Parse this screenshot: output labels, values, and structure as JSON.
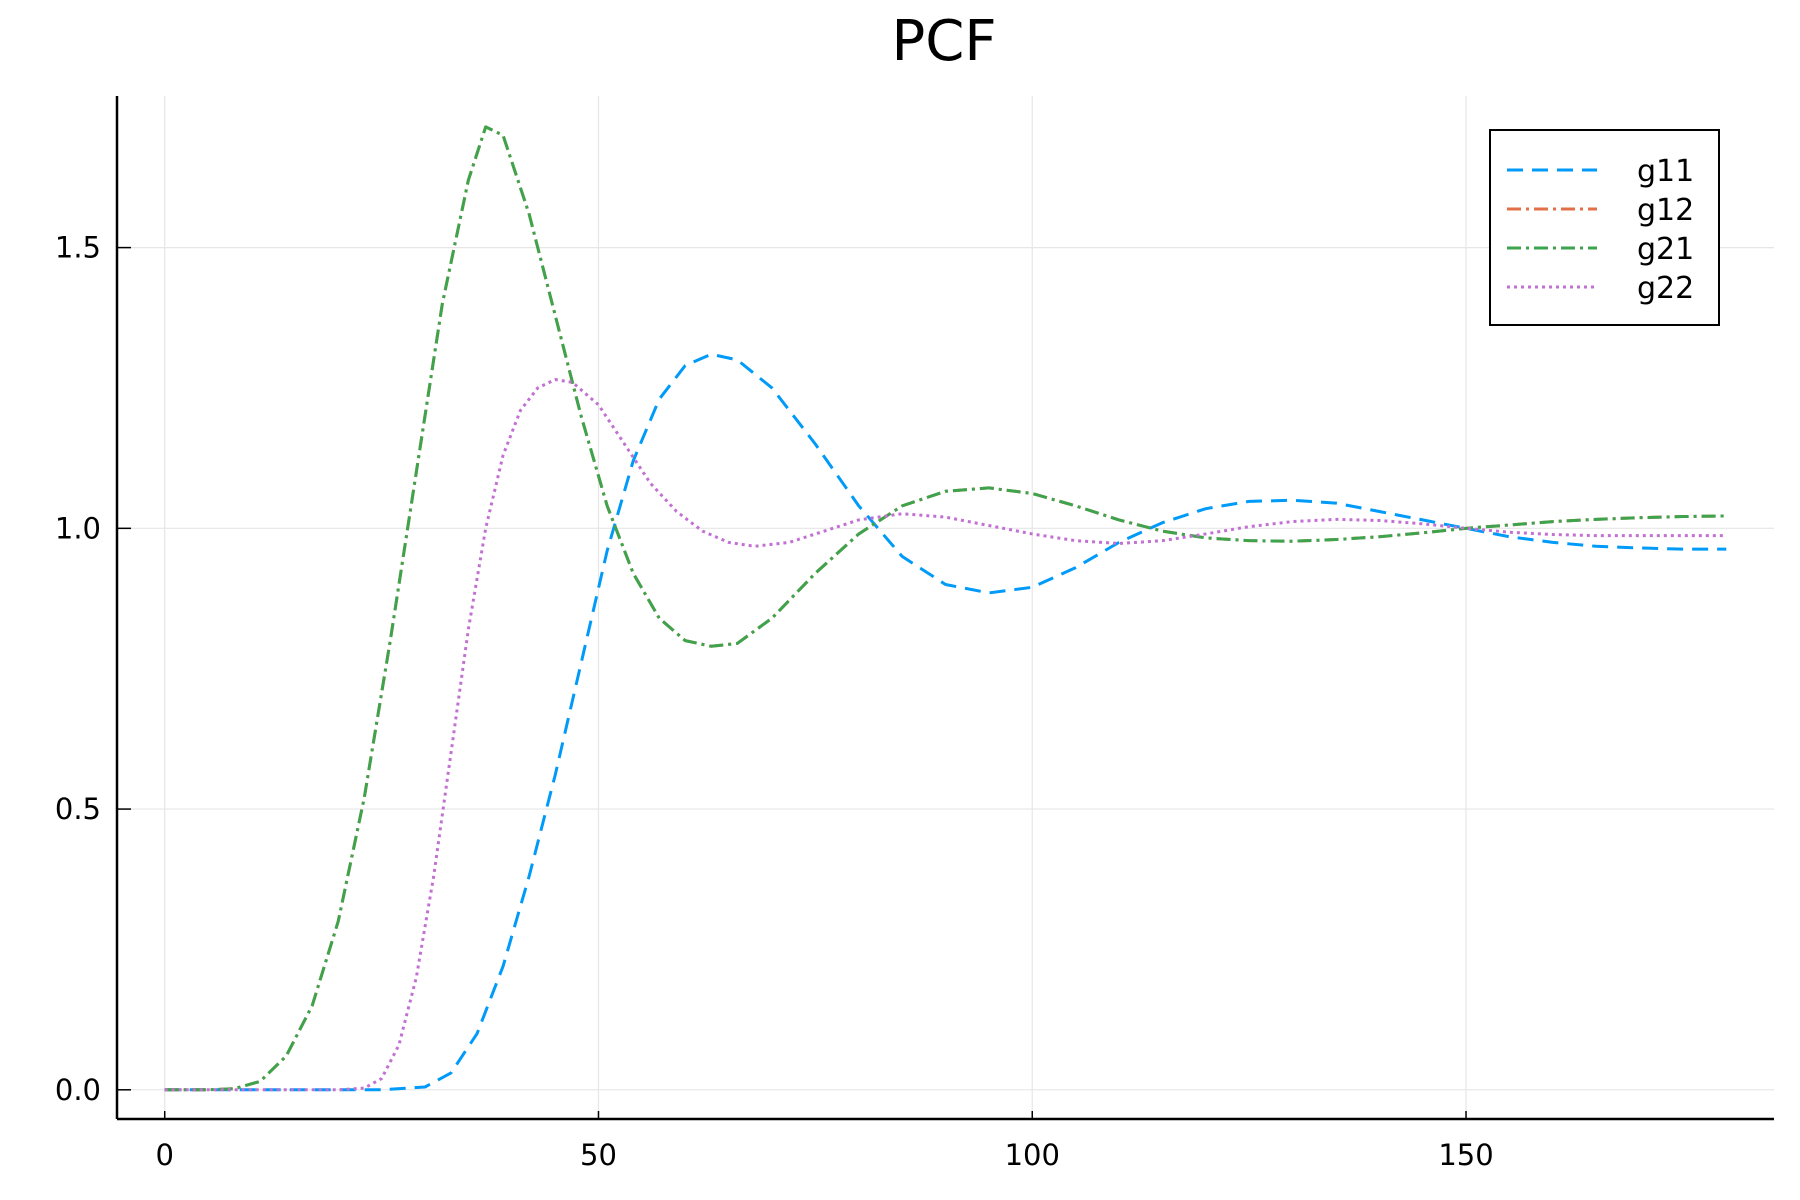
{
  "chart_data": {
    "type": "line",
    "title": "PCF",
    "xlabel": "",
    "ylabel": "",
    "xlim": [
      -5.5,
      185.5
    ],
    "ylim": [
      -0.052,
      1.77
    ],
    "xticks": [
      0,
      50,
      100,
      150
    ],
    "yticks": [
      0.0,
      0.5,
      1.0,
      1.5
    ],
    "xtick_labels": [
      "0",
      "50",
      "100",
      "150"
    ],
    "ytick_labels": [
      "0.0",
      "0.5",
      "1.0",
      "1.5"
    ],
    "grid": true,
    "legend_position": "top-right",
    "series": [
      {
        "name": "g11",
        "color": "#009af9",
        "dash": "dash",
        "points": [
          [
            0,
            0
          ],
          [
            25,
            0
          ],
          [
            30,
            0.005
          ],
          [
            33,
            0.03
          ],
          [
            36,
            0.1
          ],
          [
            39,
            0.22
          ],
          [
            42,
            0.38
          ],
          [
            45,
            0.56
          ],
          [
            48,
            0.76
          ],
          [
            51,
            0.96
          ],
          [
            54,
            1.12
          ],
          [
            57,
            1.23
          ],
          [
            60,
            1.29
          ],
          [
            63,
            1.31
          ],
          [
            66,
            1.3
          ],
          [
            70,
            1.25
          ],
          [
            75,
            1.15
          ],
          [
            80,
            1.04
          ],
          [
            85,
            0.95
          ],
          [
            90,
            0.9
          ],
          [
            95,
            0.885
          ],
          [
            100,
            0.895
          ],
          [
            105,
            0.93
          ],
          [
            110,
            0.975
          ],
          [
            115,
            1.01
          ],
          [
            120,
            1.035
          ],
          [
            125,
            1.048
          ],
          [
            130,
            1.05
          ],
          [
            135,
            1.045
          ],
          [
            140,
            1.03
          ],
          [
            145,
            1.015
          ],
          [
            150,
            1.0
          ],
          [
            155,
            0.985
          ],
          [
            160,
            0.975
          ],
          [
            165,
            0.968
          ],
          [
            170,
            0.965
          ],
          [
            175,
            0.963
          ],
          [
            180,
            0.963
          ]
        ]
      },
      {
        "name": "g12",
        "color": "#e26f46",
        "dash": "dashdot",
        "points": [
          [
            0,
            0
          ],
          [
            5,
            0
          ],
          [
            8,
            0.002
          ],
          [
            11,
            0.015
          ],
          [
            14,
            0.06
          ],
          [
            17,
            0.15
          ],
          [
            20,
            0.3
          ],
          [
            23,
            0.52
          ],
          [
            26,
            0.8
          ],
          [
            29,
            1.1
          ],
          [
            32,
            1.4
          ],
          [
            35,
            1.62
          ],
          [
            37,
            1.715
          ],
          [
            39,
            1.7
          ],
          [
            42,
            1.56
          ],
          [
            45,
            1.38
          ],
          [
            48,
            1.2
          ],
          [
            51,
            1.04
          ],
          [
            54,
            0.92
          ],
          [
            57,
            0.84
          ],
          [
            60,
            0.8
          ],
          [
            63,
            0.79
          ],
          [
            66,
            0.795
          ],
          [
            70,
            0.84
          ],
          [
            75,
            0.92
          ],
          [
            80,
            0.99
          ],
          [
            85,
            1.04
          ],
          [
            90,
            1.066
          ],
          [
            95,
            1.072
          ],
          [
            100,
            1.062
          ],
          [
            105,
            1.04
          ],
          [
            110,
            1.015
          ],
          [
            115,
            0.995
          ],
          [
            120,
            0.983
          ],
          [
            125,
            0.978
          ],
          [
            130,
            0.977
          ],
          [
            135,
            0.98
          ],
          [
            140,
            0.985
          ],
          [
            145,
            0.992
          ],
          [
            150,
            1.0
          ],
          [
            155,
            1.006
          ],
          [
            160,
            1.012
          ],
          [
            165,
            1.016
          ],
          [
            170,
            1.019
          ],
          [
            175,
            1.021
          ],
          [
            180,
            1.022
          ]
        ]
      },
      {
        "name": "g21",
        "color": "#3da44d",
        "dash": "dashdot",
        "points": [
          [
            0,
            0
          ],
          [
            5,
            0
          ],
          [
            8,
            0.002
          ],
          [
            11,
            0.015
          ],
          [
            14,
            0.06
          ],
          [
            17,
            0.15
          ],
          [
            20,
            0.3
          ],
          [
            23,
            0.52
          ],
          [
            26,
            0.8
          ],
          [
            29,
            1.1
          ],
          [
            32,
            1.4
          ],
          [
            35,
            1.62
          ],
          [
            37,
            1.715
          ],
          [
            39,
            1.7
          ],
          [
            42,
            1.56
          ],
          [
            45,
            1.38
          ],
          [
            48,
            1.2
          ],
          [
            51,
            1.04
          ],
          [
            54,
            0.92
          ],
          [
            57,
            0.84
          ],
          [
            60,
            0.8
          ],
          [
            63,
            0.79
          ],
          [
            66,
            0.795
          ],
          [
            70,
            0.84
          ],
          [
            75,
            0.92
          ],
          [
            80,
            0.99
          ],
          [
            85,
            1.04
          ],
          [
            90,
            1.066
          ],
          [
            95,
            1.072
          ],
          [
            100,
            1.062
          ],
          [
            105,
            1.04
          ],
          [
            110,
            1.015
          ],
          [
            115,
            0.995
          ],
          [
            120,
            0.983
          ],
          [
            125,
            0.978
          ],
          [
            130,
            0.977
          ],
          [
            135,
            0.98
          ],
          [
            140,
            0.985
          ],
          [
            145,
            0.992
          ],
          [
            150,
            1.0
          ],
          [
            155,
            1.006
          ],
          [
            160,
            1.012
          ],
          [
            165,
            1.016
          ],
          [
            170,
            1.019
          ],
          [
            175,
            1.021
          ],
          [
            180,
            1.022
          ]
        ]
      },
      {
        "name": "g22",
        "color": "#c271d2",
        "dash": "dot",
        "points": [
          [
            0,
            0
          ],
          [
            20,
            0
          ],
          [
            23,
            0.003
          ],
          [
            25,
            0.02
          ],
          [
            27,
            0.08
          ],
          [
            29,
            0.2
          ],
          [
            31,
            0.38
          ],
          [
            33,
            0.6
          ],
          [
            35,
            0.82
          ],
          [
            37,
            1.0
          ],
          [
            39,
            1.13
          ],
          [
            41,
            1.21
          ],
          [
            43,
            1.25
          ],
          [
            45,
            1.265
          ],
          [
            47,
            1.26
          ],
          [
            50,
            1.22
          ],
          [
            53,
            1.15
          ],
          [
            56,
            1.08
          ],
          [
            59,
            1.03
          ],
          [
            62,
            0.995
          ],
          [
            65,
            0.975
          ],
          [
            68,
            0.968
          ],
          [
            72,
            0.975
          ],
          [
            76,
            0.995
          ],
          [
            80,
            1.015
          ],
          [
            85,
            1.026
          ],
          [
            90,
            1.02
          ],
          [
            95,
            1.005
          ],
          [
            100,
            0.99
          ],
          [
            105,
            0.978
          ],
          [
            110,
            0.973
          ],
          [
            115,
            0.978
          ],
          [
            120,
            0.99
          ],
          [
            125,
            1.003
          ],
          [
            130,
            1.012
          ],
          [
            135,
            1.016
          ],
          [
            140,
            1.014
          ],
          [
            145,
            1.008
          ],
          [
            150,
            1.0
          ],
          [
            155,
            0.993
          ],
          [
            160,
            0.989
          ],
          [
            165,
            0.987
          ],
          [
            170,
            0.987
          ],
          [
            175,
            0.987
          ],
          [
            180,
            0.987
          ]
        ]
      }
    ]
  }
}
